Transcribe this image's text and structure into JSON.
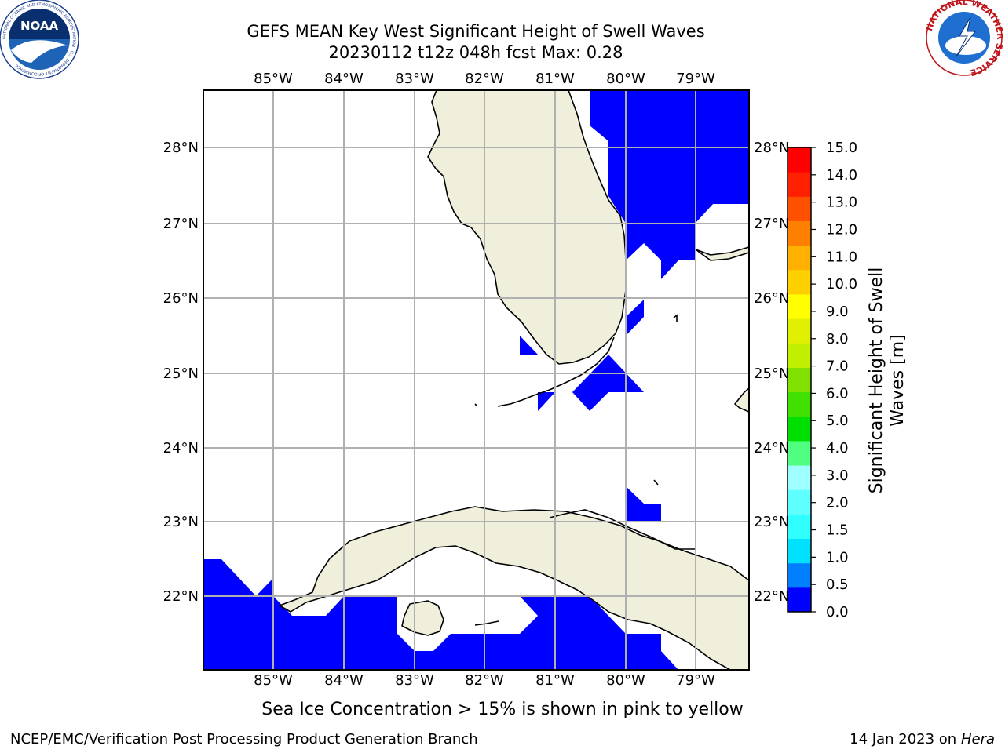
{
  "title": {
    "line1": "GEFS MEAN Key West Significant Height of Swell Waves",
    "line2": "20230112 t12z 048h fcst   Max: 0.28"
  },
  "logos": {
    "noaa": "NOAA",
    "noaa_ring": "NATIONAL OCEANIC AND ATMOSPHERIC ADMINISTRATION · U.S. DEPARTMENT OF COMMERCE",
    "nws_ring": "NATIONAL WEATHER SERVICE"
  },
  "subtitle": "Sea Ice Concentration > 15% is shown in pink to yellow",
  "footer": {
    "left": "NCEP/EMC/Verification Post Processing Product Generation Branch",
    "right_date": "14 Jan 2023 on ",
    "right_host": "Hera"
  },
  "colors": {
    "ocean": "#ffffff",
    "land": "#efefdc",
    "swell_fill": "#0000ff",
    "grid": "#b0b0b0"
  },
  "chart_data": {
    "type": "heatmap",
    "region": "Key West",
    "x_ticks": [
      "85°W",
      "84°W",
      "83°W",
      "82°W",
      "81°W",
      "80°W",
      "79°W"
    ],
    "x_tick_values": [
      -85,
      -84,
      -83,
      -82,
      -81,
      -80,
      -79
    ],
    "y_ticks": [
      "28°N",
      "27°N",
      "26°N",
      "25°N",
      "24°N",
      "23°N",
      "22°N"
    ],
    "y_tick_values": [
      28,
      27,
      26,
      25,
      24,
      23,
      22
    ],
    "xlim": [
      -86,
      -78.25
    ],
    "ylim": [
      21.05,
      28.75
    ],
    "grid": true,
    "max_value": 0.28,
    "colorbar": {
      "label": "Significant Height of Swell Waves [m]",
      "label_line1": "Significant Height of Swell",
      "label_line2": "Waves [m]",
      "ticks": [
        "0.0",
        "0.5",
        "1.0",
        "1.5",
        "2.0",
        "3.0",
        "4.0",
        "5.0",
        "6.0",
        "7.0",
        "8.0",
        "9.0",
        "10.0",
        "11.0",
        "12.0",
        "13.0",
        "14.0",
        "15.0"
      ],
      "colors": [
        "#0000ff",
        "#0080ff",
        "#00e0ff",
        "#30ffff",
        "#60ffff",
        "#a0ffff",
        "#50ff80",
        "#00e000",
        "#40e000",
        "#80e000",
        "#c0f000",
        "#e0f000",
        "#ffff00",
        "#ffd000",
        "#ffb000",
        "#ff8000",
        "#ff5000",
        "#ff2000",
        "#ff0000"
      ]
    },
    "swell_regions": [
      {
        "name": "atlantic-east-of-florida",
        "value_range": "0.0-0.5",
        "lon": [
          -80.5,
          -78.25
        ],
        "lat": [
          26.4,
          28.75
        ]
      },
      {
        "name": "straits-of-florida-east",
        "value_range": "0.0-0.5",
        "lon": [
          -80.8,
          -80.2
        ],
        "lat": [
          24.5,
          25.2
        ]
      },
      {
        "name": "caribbean-south-of-cuba",
        "value_range": "0.0-0.5",
        "lon": [
          -86,
          -79.5
        ],
        "lat": [
          21.05,
          22.5
        ]
      }
    ]
  }
}
